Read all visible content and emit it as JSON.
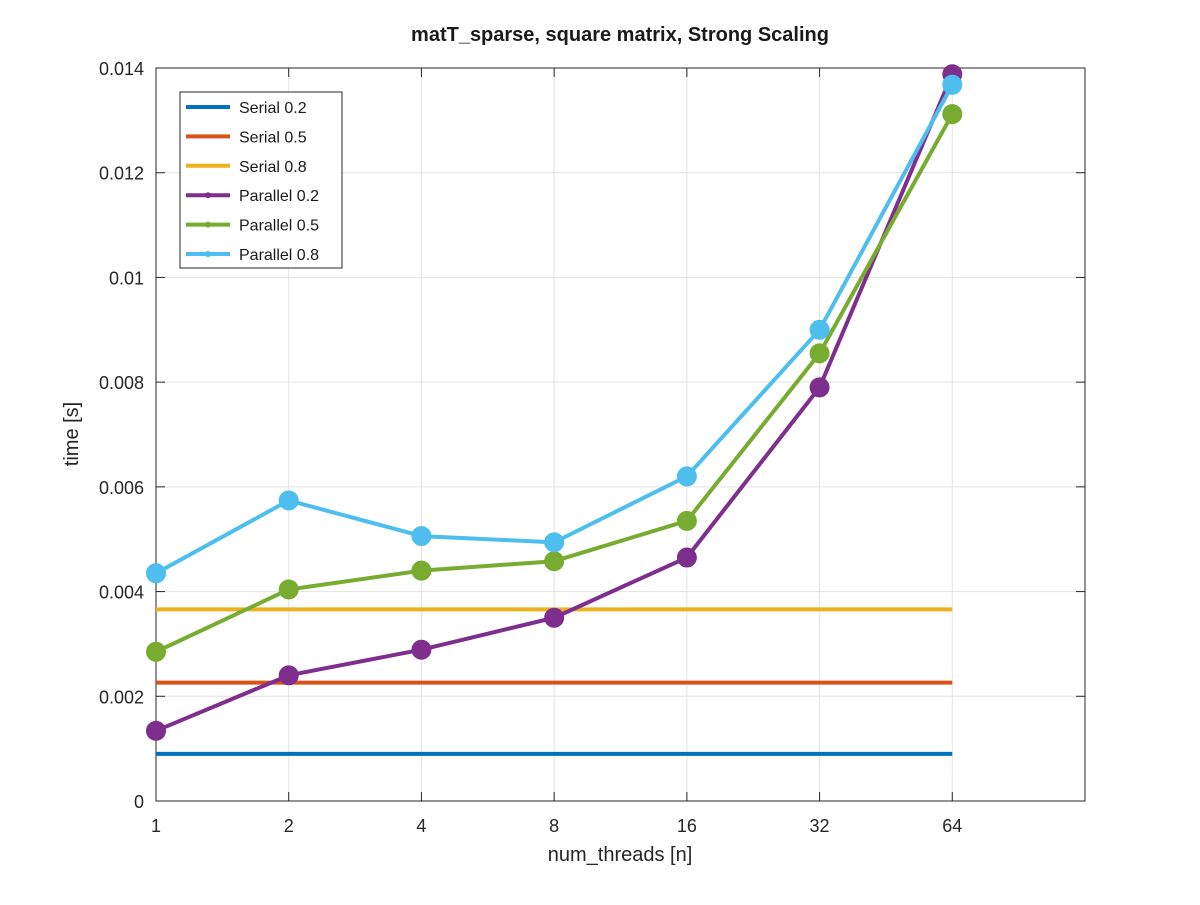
{
  "chart_data": {
    "type": "line",
    "title": "matT_sparse, square matrix, Strong Scaling",
    "xlabel": "num_threads [n]",
    "ylabel": "time [s]",
    "x_scale": "log2",
    "x": [
      1,
      2,
      4,
      8,
      16,
      32,
      64
    ],
    "x_tick_labels": [
      "1",
      "2",
      "4",
      "8",
      "16",
      "32",
      "64"
    ],
    "xlim": [
      1,
      128
    ],
    "ylim": [
      0,
      0.014
    ],
    "y_ticks": [
      0,
      0.002,
      0.004,
      0.006,
      0.008,
      0.01,
      0.012,
      0.014
    ],
    "y_tick_labels": [
      "0",
      "0.002",
      "0.004",
      "0.006",
      "0.008",
      "0.01",
      "0.012",
      "0.014"
    ],
    "grid": true,
    "legend_position": "top-left",
    "series": [
      {
        "name": "Serial 0.2",
        "color": "#0072BD",
        "markers": false,
        "values": [
          0.0009,
          0.0009,
          0.0009,
          0.0009,
          0.0009,
          0.0009,
          0.0009
        ]
      },
      {
        "name": "Serial 0.5",
        "color": "#D95319",
        "markers": false,
        "values": [
          0.00226,
          0.00226,
          0.00226,
          0.00226,
          0.00226,
          0.00226,
          0.00226
        ]
      },
      {
        "name": "Serial 0.8",
        "color": "#EDB120",
        "markers": false,
        "values": [
          0.00366,
          0.00366,
          0.00366,
          0.00366,
          0.00366,
          0.00366,
          0.00366
        ]
      },
      {
        "name": "Parallel 0.2",
        "color": "#7E2F8E",
        "markers": true,
        "values": [
          0.00134,
          0.0024,
          0.00289,
          0.0035,
          0.00465,
          0.0079,
          0.01388
        ]
      },
      {
        "name": "Parallel 0.5",
        "color": "#77AC30",
        "markers": true,
        "values": [
          0.00285,
          0.00404,
          0.0044,
          0.00458,
          0.00535,
          0.00855,
          0.01312
        ]
      },
      {
        "name": "Parallel 0.8",
        "color": "#4DBEEE",
        "markers": true,
        "values": [
          0.00435,
          0.00574,
          0.00506,
          0.00494,
          0.0062,
          0.009,
          0.01368
        ]
      }
    ]
  }
}
